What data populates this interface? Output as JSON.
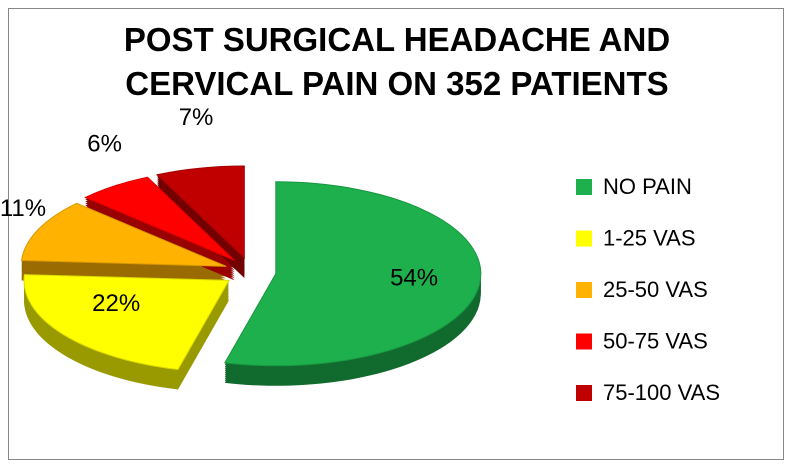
{
  "chart_data": {
    "type": "pie",
    "title": "POST SURGICAL HEADACHE AND CERVICAL PAIN ON 352 PATIENTS",
    "categories": [
      "NO PAIN",
      "1-25 VAS",
      "25-50 VAS",
      "50-75 VAS",
      "75-100 VAS"
    ],
    "values": [
      54,
      22,
      11,
      6,
      7
    ],
    "value_labels": [
      "54%",
      "22%",
      "11%",
      "6%",
      "7%"
    ],
    "colors": [
      "#1db04c",
      "#ffff00",
      "#ffb300",
      "#ff0000",
      "#c00000"
    ],
    "legend": "right"
  }
}
